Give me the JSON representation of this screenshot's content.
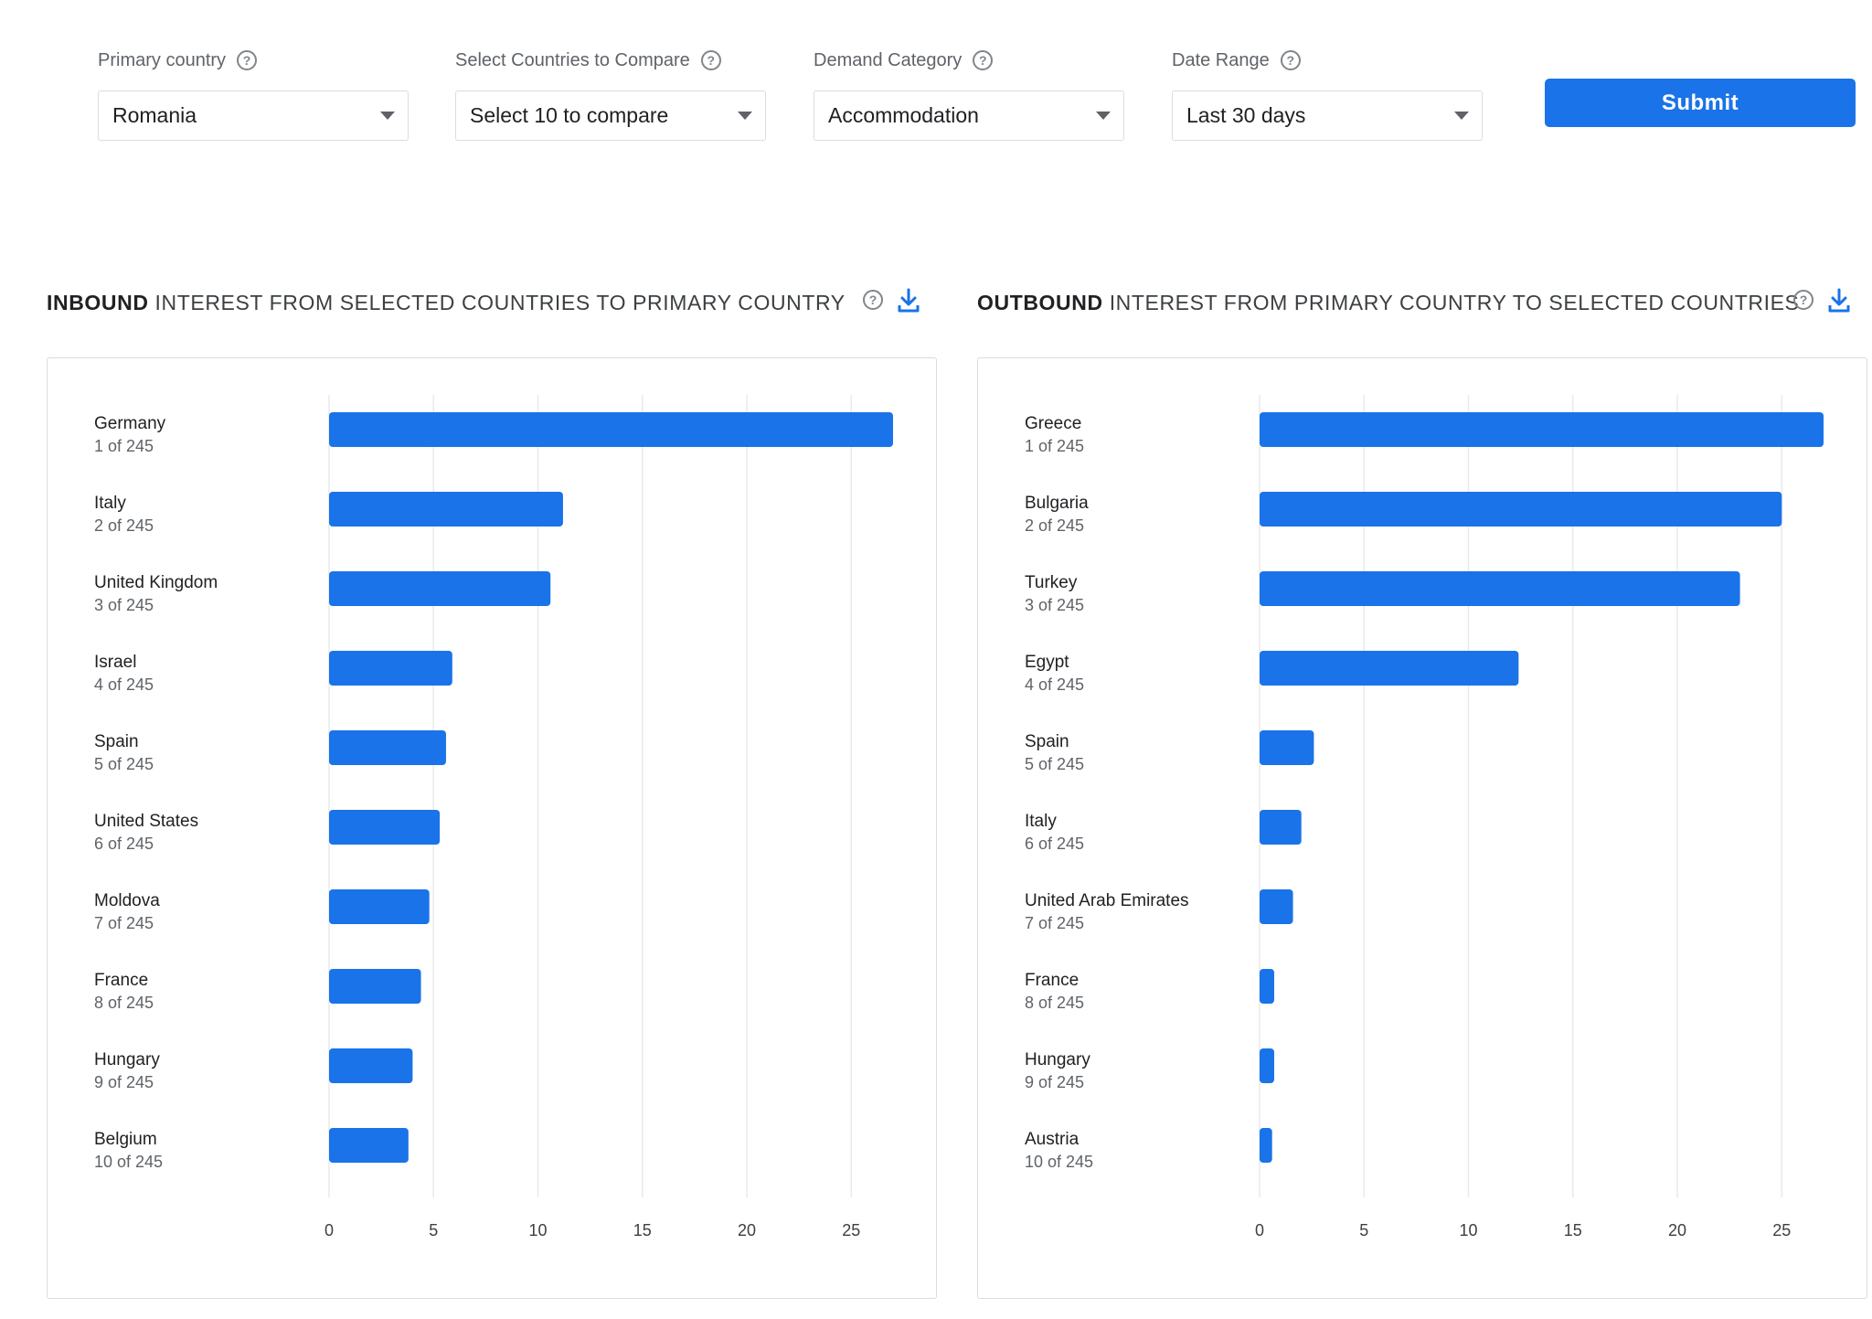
{
  "filters": {
    "primary_country": {
      "label": "Primary country",
      "value": "Romania"
    },
    "compare": {
      "label": "Select Countries to Compare",
      "value": "Select 10 to compare"
    },
    "demand": {
      "label": "Demand Category",
      "value": "Accommodation"
    },
    "date_range": {
      "label": "Date Range",
      "value": "Last 30 days"
    },
    "submit_label": "Submit",
    "help_icon": "question-circle-icon"
  },
  "inbound": {
    "title_bold": "INBOUND",
    "title_rest": "INTEREST FROM SELECTED COUNTRIES TO PRIMARY COUNTRY"
  },
  "outbound": {
    "title_bold": "OUTBOUND",
    "title_rest": "INTEREST FROM PRIMARY COUNTRY TO SELECTED COUNTRIES"
  },
  "colors": {
    "bar": "#1a73e8",
    "grid": "#e8eaed",
    "accent": "#1a73e8"
  },
  "chart_data": [
    {
      "type": "bar",
      "orientation": "horizontal",
      "categories": [
        "Germany",
        "Italy",
        "United Kingdom",
        "Israel",
        "Spain",
        "United States",
        "Moldova",
        "France",
        "Hungary",
        "Belgium"
      ],
      "ranks": [
        "1 of 245",
        "2 of 245",
        "3 of 245",
        "4 of 245",
        "5 of 245",
        "6 of 245",
        "7 of 245",
        "8 of 245",
        "9 of 245",
        "10 of 245"
      ],
      "values": [
        27,
        11.2,
        10.6,
        5.9,
        5.6,
        5.3,
        4.8,
        4.4,
        4.0,
        3.8
      ],
      "xlim": [
        0,
        27
      ],
      "xticks": [
        0,
        5,
        10,
        15,
        20,
        25
      ],
      "grid": true
    },
    {
      "type": "bar",
      "orientation": "horizontal",
      "categories": [
        "Greece",
        "Bulgaria",
        "Turkey",
        "Egypt",
        "Spain",
        "Italy",
        "United Arab Emirates",
        "France",
        "Hungary",
        "Austria"
      ],
      "ranks": [
        "1 of 245",
        "2 of 245",
        "3 of 245",
        "4 of 245",
        "5 of 245",
        "6 of 245",
        "7 of 245",
        "8 of 245",
        "9 of 245",
        "10 of 245"
      ],
      "values": [
        27,
        25,
        23,
        12.4,
        2.6,
        2.0,
        1.6,
        0.7,
        0.7,
        0.6
      ],
      "xlim": [
        0,
        27
      ],
      "xticks": [
        0,
        5,
        10,
        15,
        20,
        25
      ],
      "grid": true
    }
  ]
}
